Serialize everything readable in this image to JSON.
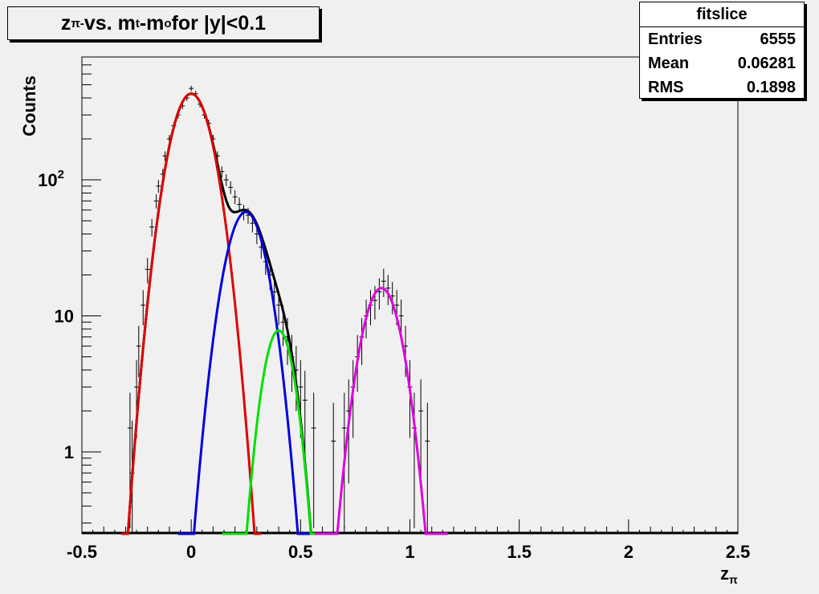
{
  "title": {
    "main": "z",
    "sub": "π-",
    "rest_a": " vs. m",
    "sub_t": "t",
    "rest_b": "-m",
    "sub_o": "o",
    "rest_c": " for |y|<0.1"
  },
  "stats": {
    "name": "fitslice",
    "rows": [
      {
        "label": "Entries",
        "value": "6555"
      },
      {
        "label": "Mean",
        "value": "0.06281"
      },
      {
        "label": "RMS",
        "value": "0.1898"
      }
    ]
  },
  "chart_data": {
    "type": "line",
    "xlabel_main": "z",
    "xlabel_sub": "π",
    "ylabel": "Counts",
    "xlim": [
      -0.5,
      2.5
    ],
    "ylim": [
      0.25,
      800
    ],
    "yscale": "log",
    "x_ticks": [
      "-0.5",
      "0",
      "0.5",
      "1",
      "1.5",
      "2",
      "2.5"
    ],
    "y_ticks": [
      {
        "value": 1,
        "base": "1",
        "exp": ""
      },
      {
        "value": 10,
        "base": "10",
        "exp": ""
      },
      {
        "value": 100,
        "base": "10",
        "exp": "2"
      }
    ],
    "colors": {
      "total": "#000000",
      "red": "#e00000",
      "blue": "#0000e0",
      "green": "#00e000",
      "magenta": "#e000e0"
    },
    "gaussians": [
      {
        "color": "red",
        "amplitude": 430,
        "mean": 0.0,
        "sigma": 0.075
      },
      {
        "color": "blue",
        "amplitude": 58,
        "mean": 0.25,
        "sigma": 0.072
      },
      {
        "color": "green",
        "amplitude": 7.8,
        "mean": 0.4,
        "sigma": 0.056
      },
      {
        "color": "magenta",
        "amplitude": 16,
        "mean": 0.87,
        "sigma": 0.07
      }
    ],
    "points": [
      {
        "x": -0.28,
        "y": 1.5
      },
      {
        "x": -0.27,
        "y": 0.7
      },
      {
        "x": -0.25,
        "y": 3.0
      },
      {
        "x": -0.24,
        "y": 6.0
      },
      {
        "x": -0.22,
        "y": 12
      },
      {
        "x": -0.2,
        "y": 22
      },
      {
        "x": -0.18,
        "y": 45
      },
      {
        "x": -0.16,
        "y": 70
      },
      {
        "x": -0.15,
        "y": 90
      },
      {
        "x": -0.13,
        "y": 110
      },
      {
        "x": -0.12,
        "y": 150
      },
      {
        "x": -0.1,
        "y": 200
      },
      {
        "x": -0.08,
        "y": 250
      },
      {
        "x": -0.06,
        "y": 300
      },
      {
        "x": -0.04,
        "y": 350
      },
      {
        "x": -0.02,
        "y": 400
      },
      {
        "x": 0.0,
        "y": 470
      },
      {
        "x": 0.02,
        "y": 430
      },
      {
        "x": 0.04,
        "y": 360
      },
      {
        "x": 0.06,
        "y": 300
      },
      {
        "x": 0.08,
        "y": 260
      },
      {
        "x": 0.1,
        "y": 200
      },
      {
        "x": 0.12,
        "y": 150
      },
      {
        "x": 0.14,
        "y": 115
      },
      {
        "x": 0.16,
        "y": 100
      },
      {
        "x": 0.18,
        "y": 88
      },
      {
        "x": 0.2,
        "y": 75
      },
      {
        "x": 0.22,
        "y": 66
      },
      {
        "x": 0.24,
        "y": 58
      },
      {
        "x": 0.26,
        "y": 55
      },
      {
        "x": 0.28,
        "y": 48
      },
      {
        "x": 0.3,
        "y": 40
      },
      {
        "x": 0.32,
        "y": 32
      },
      {
        "x": 0.34,
        "y": 25
      },
      {
        "x": 0.36,
        "y": 20
      },
      {
        "x": 0.38,
        "y": 15
      },
      {
        "x": 0.4,
        "y": 12
      },
      {
        "x": 0.42,
        "y": 9
      },
      {
        "x": 0.44,
        "y": 7
      },
      {
        "x": 0.46,
        "y": 5
      },
      {
        "x": 0.48,
        "y": 4
      },
      {
        "x": 0.5,
        "y": 3
      },
      {
        "x": 0.52,
        "y": 2.4
      },
      {
        "x": 0.56,
        "y": 1.5
      },
      {
        "x": 0.65,
        "y": 1.2
      },
      {
        "x": 0.7,
        "y": 1.5
      },
      {
        "x": 0.72,
        "y": 2.0
      },
      {
        "x": 0.74,
        "y": 3.0
      },
      {
        "x": 0.76,
        "y": 5.0
      },
      {
        "x": 0.78,
        "y": 7.0
      },
      {
        "x": 0.8,
        "y": 10
      },
      {
        "x": 0.82,
        "y": 12
      },
      {
        "x": 0.84,
        "y": 13
      },
      {
        "x": 0.86,
        "y": 15
      },
      {
        "x": 0.88,
        "y": 18
      },
      {
        "x": 0.9,
        "y": 16
      },
      {
        "x": 0.92,
        "y": 14
      },
      {
        "x": 0.94,
        "y": 12
      },
      {
        "x": 0.96,
        "y": 10
      },
      {
        "x": 0.98,
        "y": 6
      },
      {
        "x": 1.0,
        "y": 3.0
      },
      {
        "x": 1.02,
        "y": 1.5
      },
      {
        "x": 1.05,
        "y": 2.0
      },
      {
        "x": 1.08,
        "y": 1.2
      }
    ]
  }
}
